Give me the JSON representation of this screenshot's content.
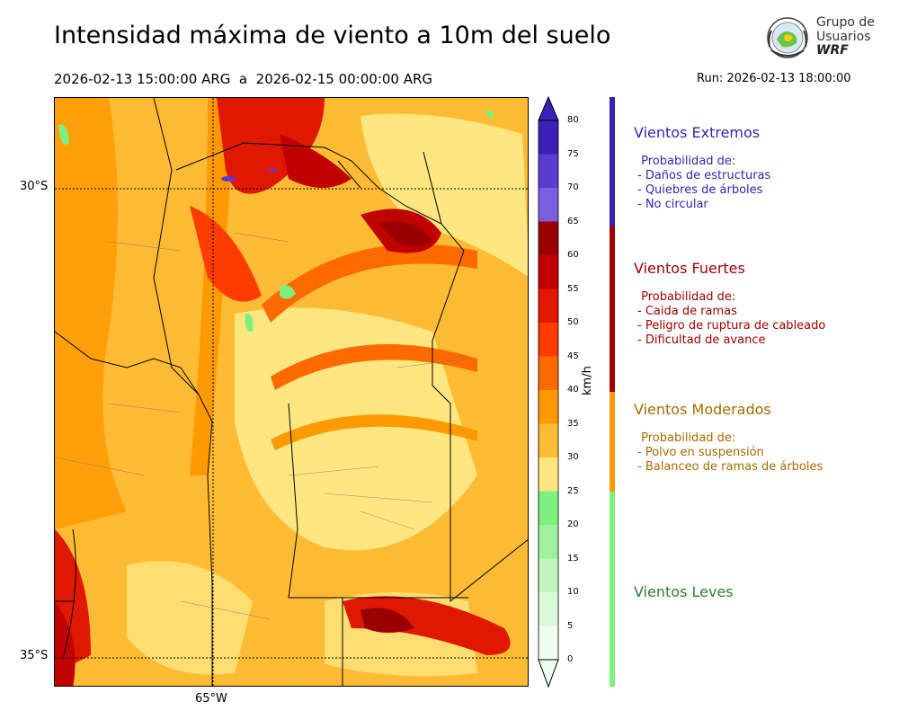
{
  "title": "Intensidad máxima de viento a 10m del suelo",
  "period": "2026-02-13 15:00:00 ARG  a  2026-02-15 00:00:00 ARG",
  "run": "Run: 2026-02-13 18:00:00",
  "logo": {
    "line1": "Grupo de",
    "line2": "Usuarios",
    "line3": "WRF"
  },
  "map": {
    "lat_labels": [
      "30°S",
      "35°S"
    ],
    "lon_labels": [
      "65°W"
    ]
  },
  "colorbar": {
    "units": "km/h",
    "ticks": [
      "80",
      "75",
      "70",
      "65",
      "60",
      "55",
      "50",
      "45",
      "40",
      "35",
      "30",
      "25",
      "20",
      "15",
      "10",
      "5",
      "0"
    ],
    "colors": [
      "#3a1fb8",
      "#5a3dd0",
      "#7a60e0",
      "#9b0000",
      "#c10000",
      "#e01800",
      "#ff3c00",
      "#ff6a00",
      "#ff9900",
      "#ffbb33",
      "#ffe680",
      "#7ef07e",
      "#9ff09f",
      "#bff5bf",
      "#d8fad8",
      "#edfdf0"
    ]
  },
  "categories": [
    {
      "name": "Vientos Extremos",
      "color": "#3b22b0",
      "lines": " Probabilidad de:\n- Daños de estructuras\n- Quiebres de árboles\n- No circular"
    },
    {
      "name": "Vientos Fuertes",
      "color": "#a00000",
      "lines": " Probabilidad de:\n- Caida de ramas\n- Peligro de ruptura de cableado\n- Dificultad de avance"
    },
    {
      "name": "Vientos Moderados",
      "color": "#a86a00",
      "lines": " Probabilidad de:\n- Polvo en suspensión\n- Balanceo de ramas de árboles"
    },
    {
      "name": "Vientos Leves",
      "color": "#2e7d32",
      "lines": ""
    }
  ],
  "band_colors": [
    "#3b22b0",
    "#a00000",
    "#ff9900",
    "#7ef07e"
  ]
}
